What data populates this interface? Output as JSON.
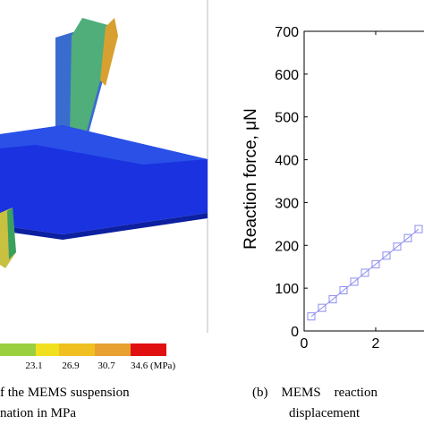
{
  "left_figure": {
    "colorbar_labels": [
      "23.1",
      "26.9",
      "30.7",
      "34.6 (MPa)"
    ],
    "caption": [
      "f the MEMS suspension",
      "nation in MPa"
    ]
  },
  "chart_data": {
    "type": "line",
    "ylabel": "Reaction force, μN",
    "x": [
      0.2,
      0.5,
      0.8,
      1.1,
      1.4,
      1.7,
      2.0,
      2.3,
      2.6,
      2.9,
      3.2
    ],
    "series": [
      {
        "name": "MEMS",
        "color": "#8c8cf0",
        "values": [
          34,
          54,
          74,
          95,
          115,
          136,
          156,
          176,
          197,
          217,
          238
        ]
      }
    ],
    "xlim": [
      0,
      3.35
    ],
    "xticks": [
      0,
      2
    ],
    "ylim": [
      0,
      700
    ],
    "yticks": [
      0,
      100,
      200,
      300,
      400,
      500,
      600,
      700
    ],
    "caption": [
      "(b)    MEMS    reaction",
      "displacement"
    ]
  }
}
